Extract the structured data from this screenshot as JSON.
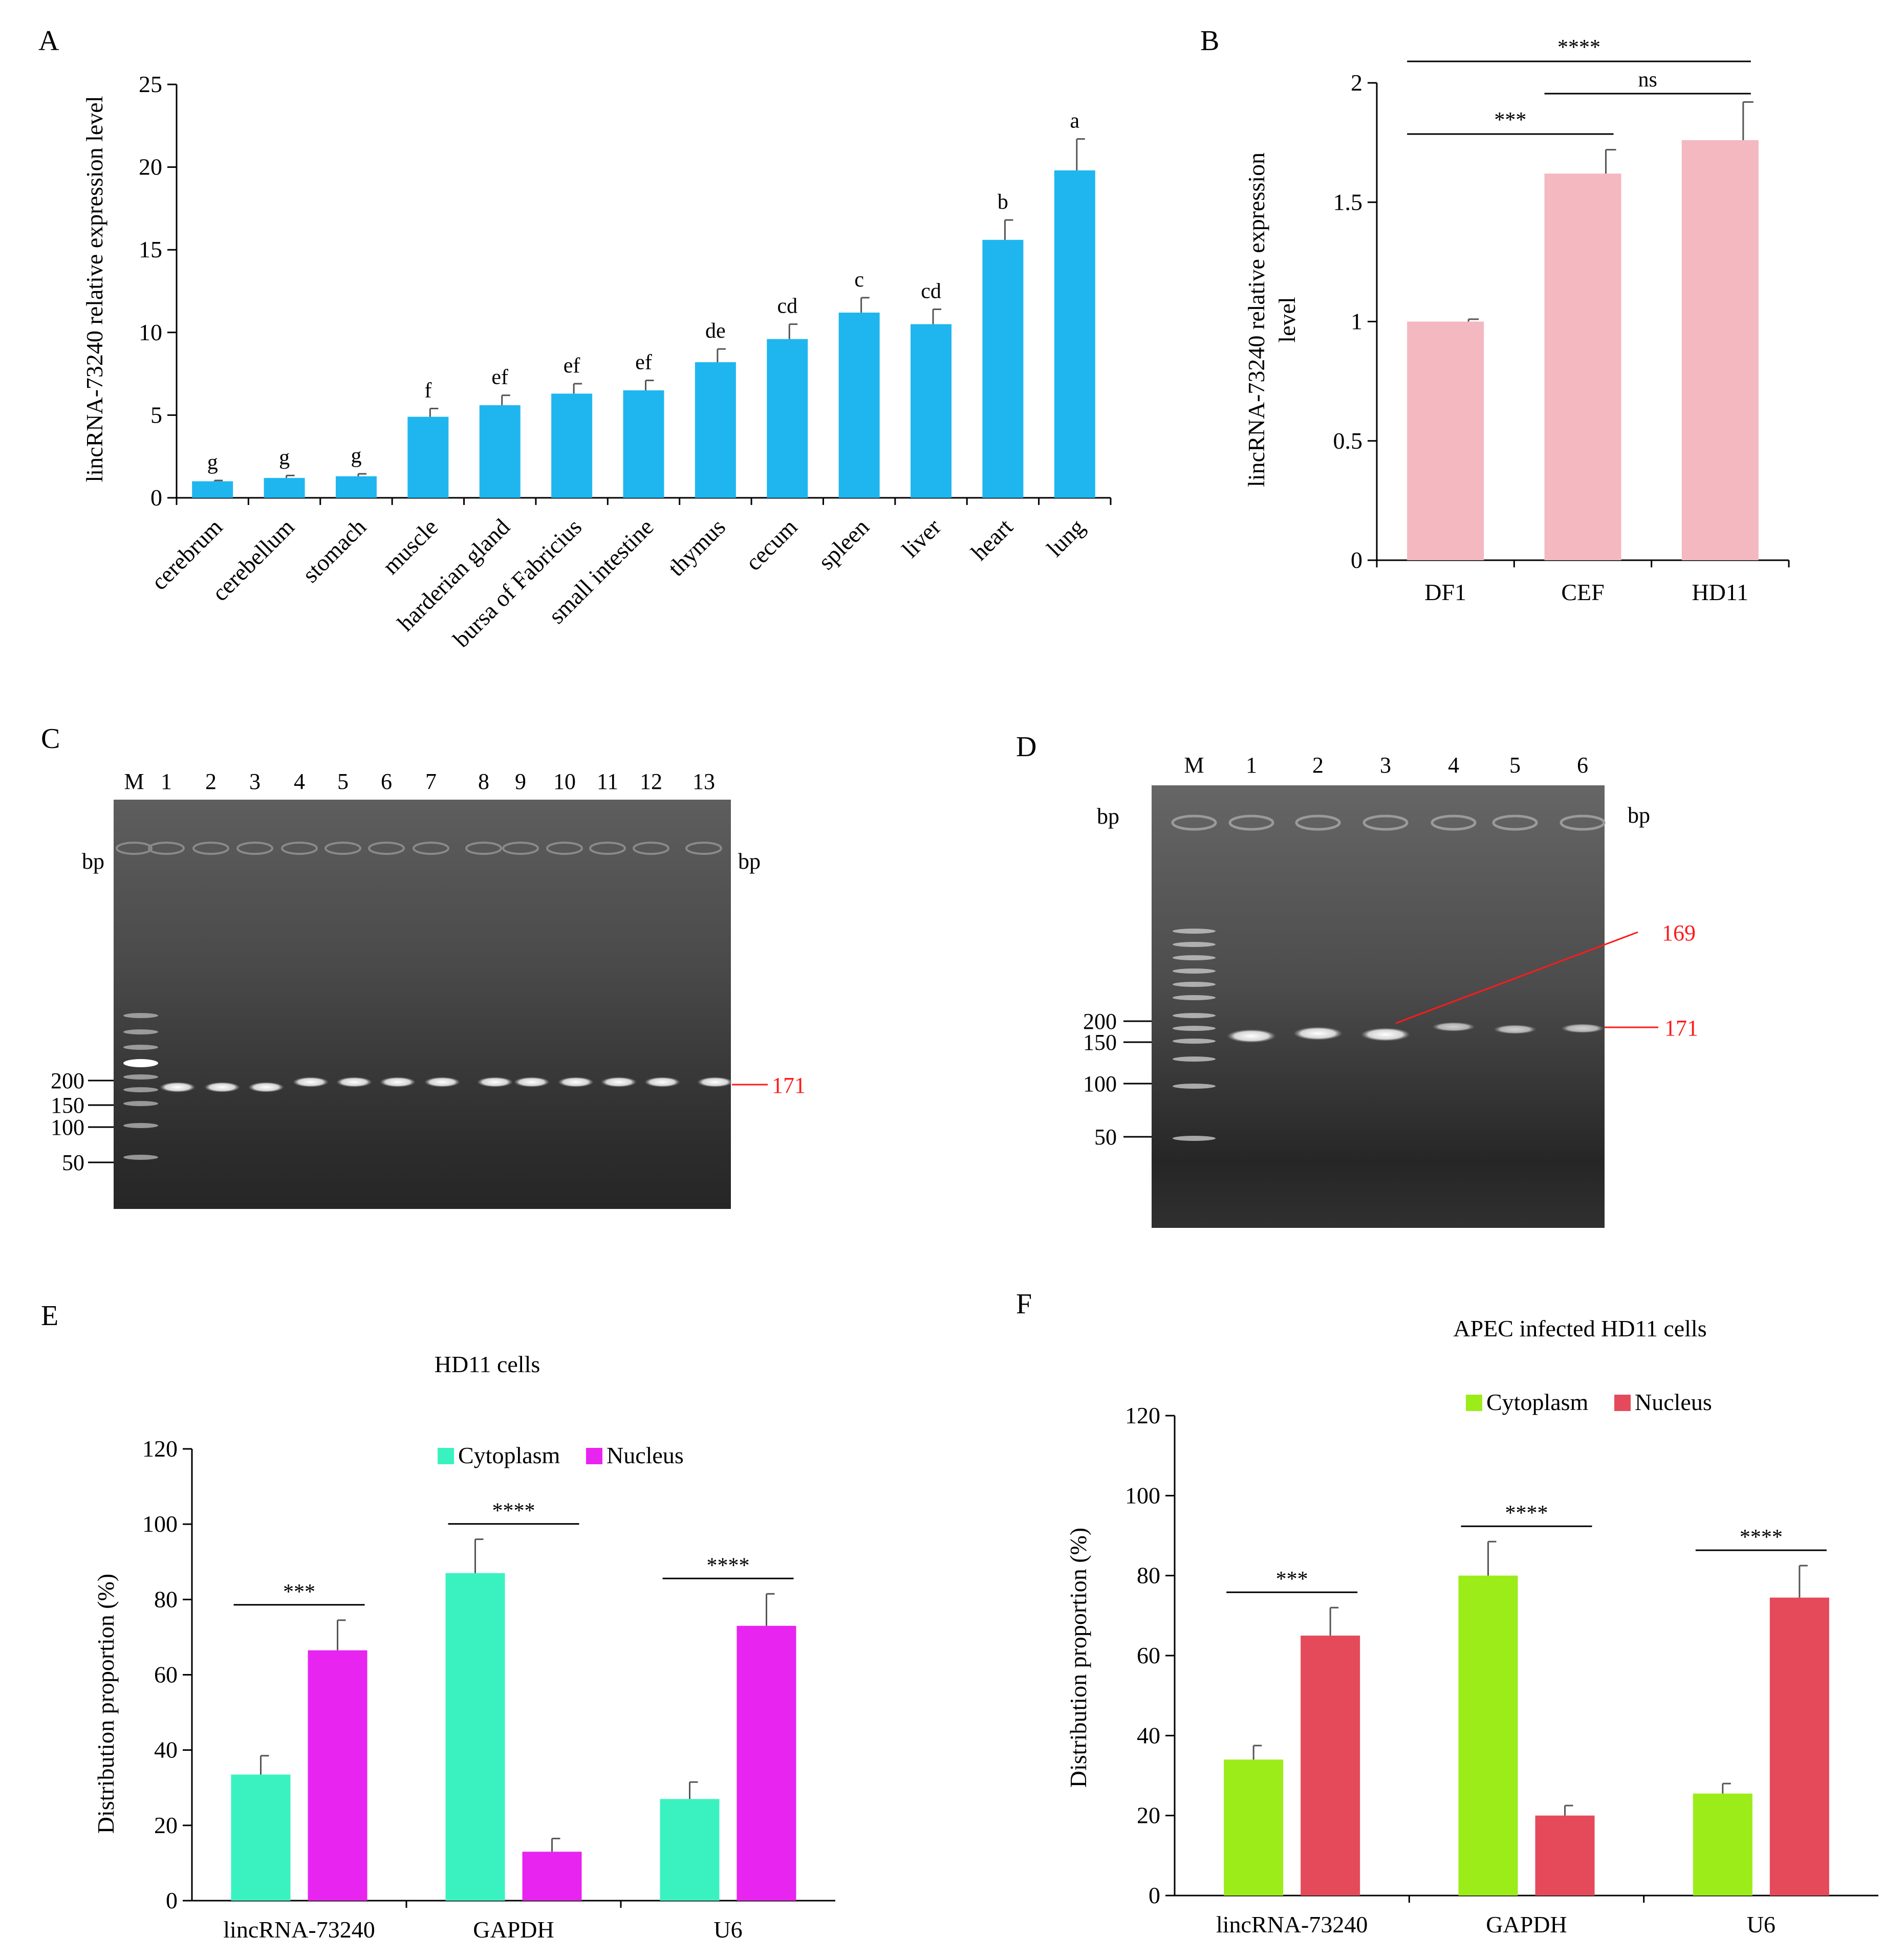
{
  "chart_data": [
    {
      "id": "A",
      "type": "bar",
      "panel_label": "A",
      "ylabel": "lincRNA-73240 relative expression level",
      "ylim": [
        0,
        25
      ],
      "yticks": [
        0,
        5,
        10,
        15,
        20,
        25
      ],
      "color": "#1fb6ef",
      "categories": [
        "cerebrum",
        "cerebellum",
        "stomach",
        "muscle",
        "harderian gland",
        "bursa of Fabricius",
        "small intestine",
        "thymus",
        "cecum",
        "spleen",
        "liver",
        "heart",
        "lung"
      ],
      "values": [
        1.0,
        1.2,
        1.3,
        4.9,
        5.6,
        6.3,
        6.5,
        8.2,
        9.6,
        11.2,
        10.5,
        15.6,
        19.8
      ],
      "errors": [
        0.05,
        0.15,
        0.15,
        0.5,
        0.6,
        0.6,
        0.6,
        0.8,
        0.9,
        0.9,
        0.9,
        1.2,
        1.9
      ],
      "letters": [
        "g",
        "g",
        "g",
        "f",
        "ef",
        "ef",
        "ef",
        "de",
        "cd",
        "c",
        "cd",
        "b",
        "a"
      ]
    },
    {
      "id": "B",
      "type": "bar",
      "panel_label": "B",
      "ylabel_line1": "lincRNA-73240 relative expression",
      "ylabel_line2": "level",
      "ylim": [
        0,
        2
      ],
      "yticks": [
        "0",
        "0.5",
        "1",
        "1.5",
        "2"
      ],
      "ytick_values": [
        0,
        0.5,
        1,
        1.5,
        2
      ],
      "color": "#f4b8c0",
      "categories": [
        "DF1",
        "CEF",
        "HD11"
      ],
      "values": [
        1.0,
        1.62,
        1.76
      ],
      "errors": [
        0.01,
        0.1,
        0.16
      ],
      "significance": [
        {
          "from": 0,
          "to": 2,
          "label": "****"
        },
        {
          "from": 1,
          "to": 2,
          "label": "ns"
        },
        {
          "from": 0,
          "to": 1,
          "label": "***"
        }
      ]
    },
    {
      "id": "E",
      "type": "bar",
      "panel_label": "E",
      "title": "HD11 cells",
      "ylabel": "Distribution proportion (%)",
      "ylim": [
        0,
        120
      ],
      "yticks": [
        0,
        20,
        40,
        60,
        80,
        100,
        120
      ],
      "categories": [
        "lincRNA-73240",
        "GAPDH",
        "U6"
      ],
      "series": [
        {
          "name": "Cytoplasm",
          "color": "#3af2c0",
          "values": [
            33.5,
            87,
            27
          ],
          "errors": [
            5,
            9,
            4.5
          ]
        },
        {
          "name": "Nucleus",
          "color": "#e824f0",
          "values": [
            66.5,
            13,
            73
          ],
          "errors": [
            8,
            3.5,
            8.5
          ]
        }
      ],
      "significance": [
        "***",
        "****",
        "****"
      ]
    },
    {
      "id": "F",
      "type": "bar",
      "panel_label": "F",
      "title": "APEC infected HD11 cells",
      "ylabel": "Distribution proportion (%)",
      "ylim": [
        0,
        120
      ],
      "yticks": [
        0,
        20,
        40,
        60,
        80,
        100,
        120
      ],
      "categories": [
        "lincRNA-73240",
        "GAPDH",
        "U6"
      ],
      "series": [
        {
          "name": "Cytoplasm",
          "color": "#9cec1a",
          "values": [
            34,
            80,
            25.5
          ],
          "errors": [
            3.5,
            8.5,
            2.5
          ]
        },
        {
          "name": "Nucleus",
          "color": "#e44a5a",
          "values": [
            65,
            20,
            74.5
          ],
          "errors": [
            7,
            2.5,
            8
          ]
        }
      ],
      "significance": [
        "***",
        "****",
        "****"
      ]
    }
  ],
  "gel_c": {
    "panel_label": "C",
    "lanes": [
      "M",
      "1",
      "2",
      "3",
      "4",
      "5",
      "6",
      "7",
      "8",
      "9",
      "10",
      "11",
      "12",
      "13"
    ],
    "unit_left": "bp",
    "unit_right": "bp",
    "marker_labels": [
      "200",
      "150",
      "100",
      "50"
    ],
    "band_label": "171"
  },
  "gel_d": {
    "panel_label": "D",
    "lanes": [
      "M",
      "1",
      "2",
      "3",
      "4",
      "5",
      "6"
    ],
    "unit_left": "bp",
    "unit_right": "bp",
    "marker_labels": [
      "200",
      "150",
      "100",
      "50"
    ],
    "band_label_upper": "169",
    "band_label_lower": "171"
  }
}
